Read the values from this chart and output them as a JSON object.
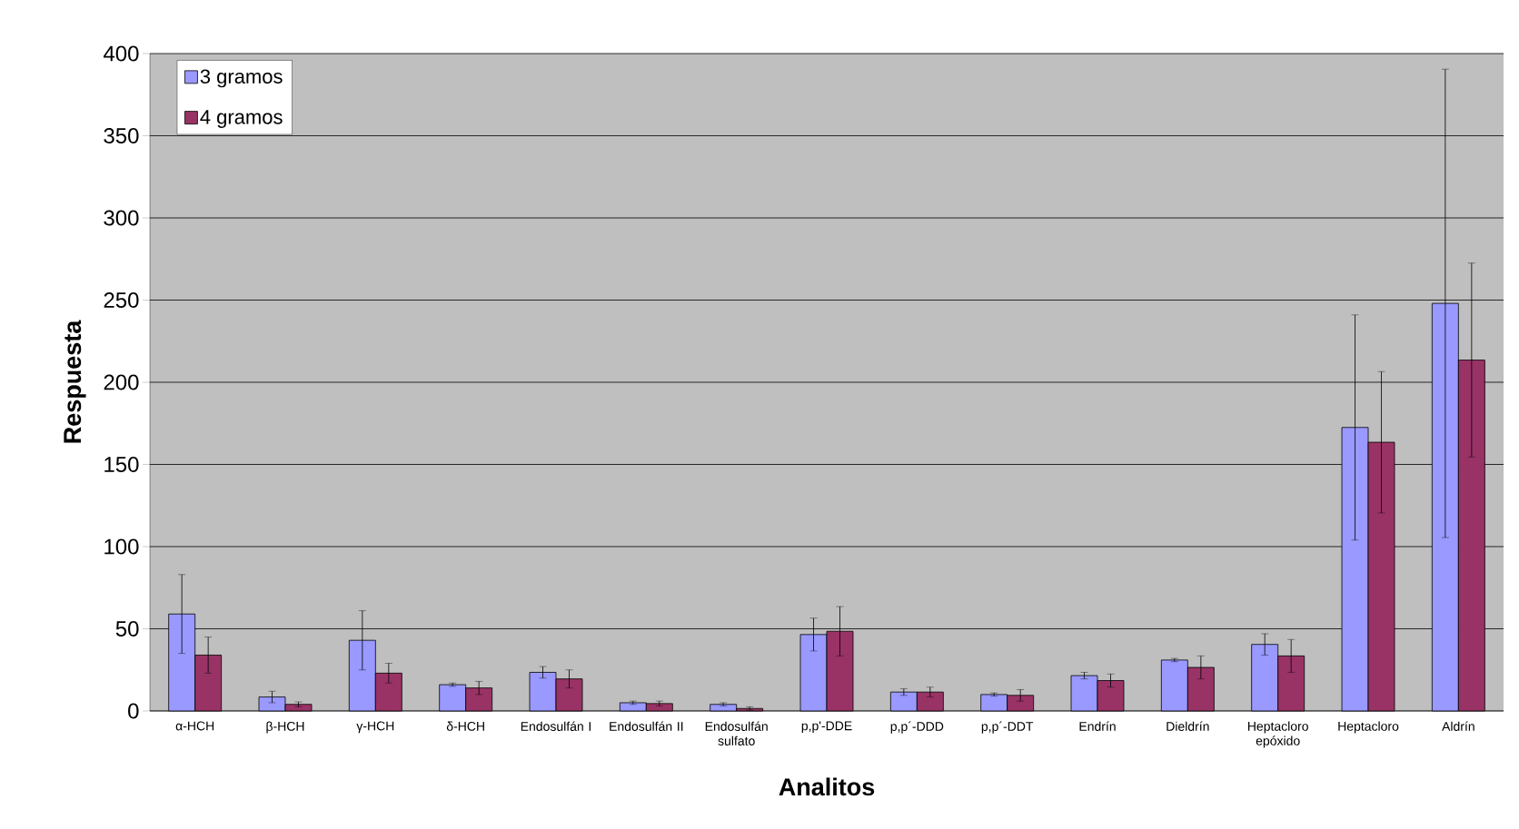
{
  "chart_data": {
    "type": "bar",
    "xlabel": "Analitos",
    "ylabel": "Respuesta",
    "categories": [
      "α-HCH",
      "β-HCH",
      "γ-HCH",
      "δ-HCH",
      "Endosulfán I",
      "Endosulfán II",
      "Endosulfán sulfato",
      "p,p'-DDE",
      "p,p´-DDD",
      "p,p´-DDT",
      "Endrín",
      "Dieldrín",
      "Heptacloro epóxido",
      "Heptacloro",
      "Aldrín"
    ],
    "series": [
      {
        "name": "3 gramos",
        "color": "#9999ff",
        "values": [
          59,
          8.5,
          43,
          16,
          23.5,
          5,
          4,
          46.5,
          11.5,
          10,
          21.5,
          31,
          40.5,
          172.5,
          248
        ],
        "errors": [
          24,
          3.5,
          18,
          1,
          3.5,
          1,
          1,
          10,
          2,
          1,
          2,
          1,
          6.5,
          68.5,
          142.5
        ]
      },
      {
        "name": "4 gramos",
        "color": "#993366",
        "values": [
          34,
          4,
          23,
          14,
          19.5,
          4.5,
          1.5,
          48.5,
          11.5,
          9.5,
          18.5,
          26.5,
          33.5,
          163.5,
          213.5
        ],
        "errors": [
          11,
          1.5,
          6,
          4,
          5.5,
          1.5,
          1,
          15,
          3,
          3.5,
          4,
          7,
          10,
          43,
          59
        ]
      }
    ],
    "ylim": [
      0,
      400
    ],
    "yticks": [
      0,
      50,
      100,
      150,
      200,
      250,
      300,
      350,
      400
    ],
    "grid": "y",
    "legend": "top left"
  }
}
